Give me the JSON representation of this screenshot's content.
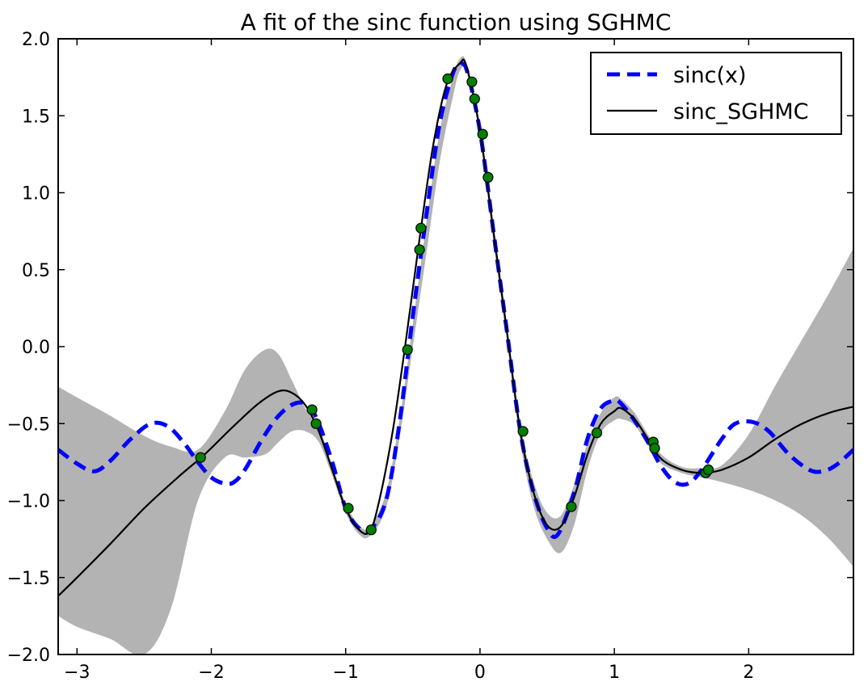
{
  "chart_data": {
    "type": "line",
    "title": "A fit of the sinc function using SGHMC",
    "xlabel": "",
    "ylabel": "",
    "xlim": [
      -3.14,
      2.78
    ],
    "ylim": [
      -2.0,
      2.0
    ],
    "grid": false,
    "legend_placement": "top-right",
    "x_ticks": [
      {
        "value": -3,
        "label": "−3"
      },
      {
        "value": -2,
        "label": "−2"
      },
      {
        "value": -1,
        "label": "−1"
      },
      {
        "value": 0,
        "label": "0"
      },
      {
        "value": 1,
        "label": "1"
      },
      {
        "value": 2,
        "label": "2"
      }
    ],
    "y_ticks": [
      {
        "value": 2.0,
        "label": "2.0"
      },
      {
        "value": 1.5,
        "label": "1.5"
      },
      {
        "value": 1.0,
        "label": "1.0"
      },
      {
        "value": 0.5,
        "label": "0.5"
      },
      {
        "value": 0.0,
        "label": "0.0"
      },
      {
        "value": -0.5,
        "label": "−0.5"
      },
      {
        "value": -1.0,
        "label": "−1.0"
      },
      {
        "value": -1.5,
        "label": "−1.5"
      },
      {
        "value": -2.0,
        "label": "−2.0"
      }
    ],
    "series": [
      {
        "name": "sinc(x)",
        "style": "dashed",
        "color": "#0000ff",
        "x": [
          -3.14,
          -3.0,
          -2.87,
          -2.75,
          -2.6,
          -2.45,
          -2.32,
          -2.2,
          -2.1,
          -2.0,
          -1.9,
          -1.83,
          -1.75,
          -1.62,
          -1.5,
          -1.38,
          -1.28,
          -1.2,
          -1.1,
          -1.0,
          -0.9,
          -0.82,
          -0.7,
          -0.6,
          -0.5,
          -0.4,
          -0.3,
          -0.2,
          -0.15,
          -0.1,
          0.0,
          0.1,
          0.2,
          0.3,
          0.4,
          0.5,
          0.58,
          0.7,
          0.8,
          0.9,
          1.0,
          1.05,
          1.15,
          1.25,
          1.35,
          1.45,
          1.55,
          1.65,
          1.8,
          1.9,
          2.03,
          2.15,
          2.3,
          2.45,
          2.55,
          2.65,
          2.78
        ],
        "values": [
          -0.67,
          -0.76,
          -0.81,
          -0.74,
          -0.6,
          -0.5,
          -0.52,
          -0.63,
          -0.75,
          -0.85,
          -0.89,
          -0.88,
          -0.8,
          -0.6,
          -0.45,
          -0.37,
          -0.38,
          -0.5,
          -0.75,
          -1.05,
          -1.18,
          -1.19,
          -1.0,
          -0.5,
          0.2,
          0.85,
          1.45,
          1.78,
          1.82,
          1.8,
          1.4,
          0.75,
          0.1,
          -0.55,
          -0.95,
          -1.18,
          -1.22,
          -0.95,
          -0.6,
          -0.4,
          -0.35,
          -0.37,
          -0.48,
          -0.62,
          -0.78,
          -0.88,
          -0.89,
          -0.8,
          -0.6,
          -0.5,
          -0.49,
          -0.55,
          -0.7,
          -0.8,
          -0.81,
          -0.77,
          -0.67
        ]
      },
      {
        "name": "sinc_SGHMC",
        "style": "solid",
        "color": "#000000",
        "x": [
          -3.14,
          -3.0,
          -2.75,
          -2.5,
          -2.25,
          -2.05,
          -1.85,
          -1.65,
          -1.5,
          -1.4,
          -1.3,
          -1.2,
          -1.1,
          -1.0,
          -0.9,
          -0.82,
          -0.75,
          -0.65,
          -0.55,
          -0.45,
          -0.35,
          -0.25,
          -0.15,
          -0.1,
          0.0,
          0.1,
          0.2,
          0.3,
          0.4,
          0.5,
          0.6,
          0.7,
          0.8,
          0.9,
          1.0,
          1.05,
          1.15,
          1.25,
          1.35,
          1.5,
          1.65,
          1.8,
          2.0,
          2.2,
          2.4,
          2.6,
          2.78
        ],
        "values": [
          -1.62,
          -1.5,
          -1.28,
          -1.05,
          -0.85,
          -0.7,
          -0.53,
          -0.37,
          -0.29,
          -0.3,
          -0.38,
          -0.55,
          -0.8,
          -1.05,
          -1.19,
          -1.2,
          -1.0,
          -0.55,
          0.05,
          0.7,
          1.3,
          1.7,
          1.84,
          1.82,
          1.4,
          0.75,
          0.1,
          -0.55,
          -0.95,
          -1.16,
          -1.17,
          -0.98,
          -0.7,
          -0.5,
          -0.42,
          -0.4,
          -0.47,
          -0.6,
          -0.73,
          -0.8,
          -0.82,
          -0.8,
          -0.72,
          -0.6,
          -0.5,
          -0.43,
          -0.39
        ]
      }
    ],
    "confidence_band": {
      "color": "#b3b3b3",
      "x": [
        -3.14,
        -3.0,
        -2.75,
        -2.5,
        -2.3,
        -2.1,
        -1.9,
        -1.75,
        -1.6,
        -1.5,
        -1.4,
        -1.3,
        -1.2,
        -1.1,
        -1.0,
        -0.9,
        -0.82,
        -0.7,
        -0.6,
        -0.5,
        -0.4,
        -0.3,
        -0.2,
        -0.15,
        -0.1,
        0.0,
        0.1,
        0.2,
        0.3,
        0.4,
        0.5,
        0.6,
        0.7,
        0.8,
        0.9,
        1.0,
        1.05,
        1.15,
        1.25,
        1.35,
        1.5,
        1.65,
        1.8,
        2.0,
        2.2,
        2.4,
        2.6,
        2.78
      ],
      "upper": [
        -0.26,
        -0.33,
        -0.45,
        -0.58,
        -0.65,
        -0.67,
        -0.42,
        -0.15,
        -0.02,
        -0.05,
        -0.22,
        -0.4,
        -0.52,
        -0.77,
        -1.02,
        -1.16,
        -1.17,
        -0.95,
        -0.48,
        0.15,
        0.8,
        1.4,
        1.75,
        1.87,
        1.84,
        1.44,
        0.8,
        0.14,
        -0.5,
        -0.88,
        -1.08,
        -1.1,
        -0.9,
        -0.63,
        -0.43,
        -0.33,
        -0.34,
        -0.43,
        -0.57,
        -0.7,
        -0.78,
        -0.79,
        -0.77,
        -0.57,
        -0.25,
        0.05,
        0.35,
        0.64
      ],
      "lower": [
        -1.75,
        -1.82,
        -1.9,
        -2.0,
        -1.7,
        -1.0,
        -0.72,
        -0.72,
        -0.7,
        -0.62,
        -0.55,
        -0.55,
        -0.62,
        -0.84,
        -1.08,
        -1.22,
        -1.23,
        -1.05,
        -0.6,
        0.0,
        0.6,
        1.2,
        1.63,
        1.79,
        1.78,
        1.36,
        0.68,
        0.04,
        -0.62,
        -1.04,
        -1.25,
        -1.34,
        -1.16,
        -0.8,
        -0.56,
        -0.48,
        -0.47,
        -0.51,
        -0.64,
        -0.76,
        -0.82,
        -0.85,
        -0.88,
        -0.93,
        -1.0,
        -1.1,
        -1.25,
        -1.43
      ]
    },
    "observations": {
      "color": "#008000",
      "x": [
        -2.08,
        -1.25,
        -1.22,
        -0.98,
        -0.81,
        -0.54,
        -0.45,
        -0.44,
        -0.24,
        -0.06,
        -0.04,
        0.02,
        0.06,
        0.32,
        0.68,
        0.87,
        1.29,
        1.3,
        1.68,
        1.7
      ],
      "values": [
        -0.72,
        -0.41,
        -0.5,
        -1.05,
        -1.19,
        -0.02,
        0.63,
        0.77,
        1.74,
        1.72,
        1.61,
        1.38,
        1.1,
        -0.55,
        -1.04,
        -0.56,
        -0.62,
        -0.66,
        -0.82,
        -0.8
      ]
    }
  }
}
